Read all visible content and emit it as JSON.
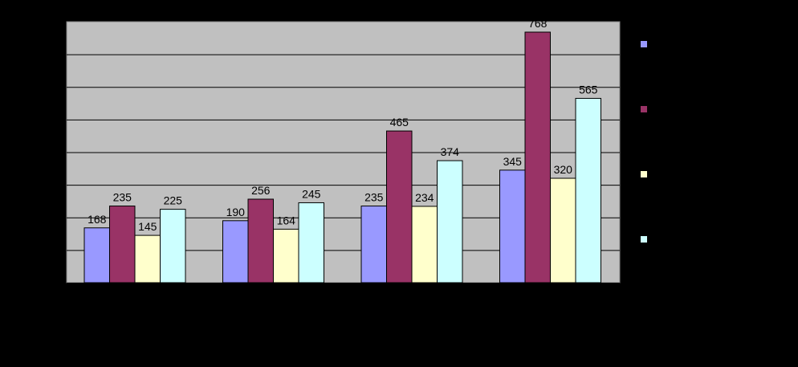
{
  "chart_data": {
    "type": "bar",
    "categories": [
      "",
      "",
      "",
      ""
    ],
    "series": [
      {
        "values": [
          168,
          190,
          235,
          345
        ],
        "color": "#9999FF"
      },
      {
        "values": [
          235,
          256,
          465,
          768
        ],
        "color": "#993366"
      },
      {
        "values": [
          145,
          164,
          234,
          320
        ],
        "color": "#FFFFCC"
      },
      {
        "values": [
          225,
          245,
          374,
          565
        ],
        "color": "#CCFFFF"
      }
    ],
    "data_labels": [
      [
        "168",
        "190",
        "235",
        "345"
      ],
      [
        "235",
        "256",
        "465",
        "768"
      ],
      [
        "145",
        "164",
        "234",
        "320"
      ],
      [
        "225",
        "245",
        "374",
        "565"
      ]
    ],
    "ylim": [
      0,
      800
    ],
    "y_gridlines": [
      100,
      200,
      300,
      400,
      500,
      600,
      700
    ],
    "grid": true,
    "plot_background": "#C0C0C0",
    "page_background": "#000000",
    "legend": "right",
    "title": "",
    "xlabel": "",
    "ylabel": ""
  }
}
